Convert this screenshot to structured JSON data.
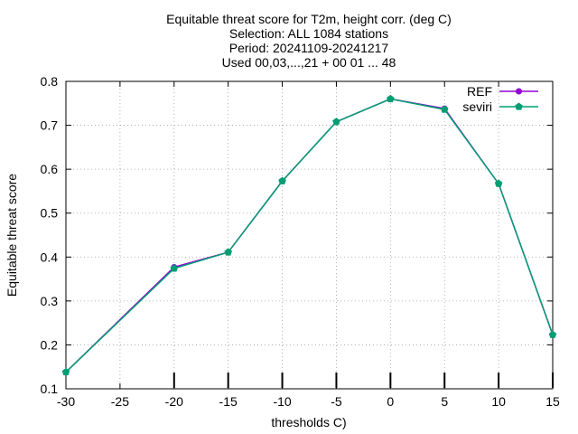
{
  "chart_data": {
    "type": "line",
    "title_lines": [
      "Equitable threat score  for T2m, height corr. (deg C)",
      "Selection: ALL    1084 stations",
      "Period: 20241109-20241217",
      "Used 00,03,...,21 + 00 01 ... 48"
    ],
    "xlabel": "thresholds C)",
    "ylabel": "Equitable threat score",
    "xlim": [
      -30,
      15
    ],
    "ylim": [
      0.1,
      0.8
    ],
    "xticks": [
      -30,
      -25,
      -20,
      -15,
      -10,
      -5,
      0,
      5,
      10,
      15
    ],
    "yticks": [
      0.1,
      0.2,
      0.3,
      0.4,
      0.5,
      0.6,
      0.7,
      0.8
    ],
    "grid": true,
    "legend_position": "top-right",
    "x": [
      -30,
      -20,
      -15,
      -10,
      -5,
      0,
      5,
      10,
      15
    ],
    "series": [
      {
        "name": "REF",
        "color": "#9400d3",
        "marker": "filled-circle",
        "values": [
          0.138,
          0.377,
          0.411,
          0.573,
          0.708,
          0.76,
          0.738,
          0.567,
          0.223
        ]
      },
      {
        "name": "seviri",
        "color": "#009e73",
        "marker": "filled-pentagon",
        "values": [
          0.138,
          0.374,
          0.411,
          0.573,
          0.708,
          0.76,
          0.736,
          0.567,
          0.223
        ]
      }
    ],
    "bottom_markers": {
      "x": [
        -20,
        -15,
        -10,
        -5,
        0,
        5,
        10,
        15
      ],
      "color": "#000000"
    }
  }
}
